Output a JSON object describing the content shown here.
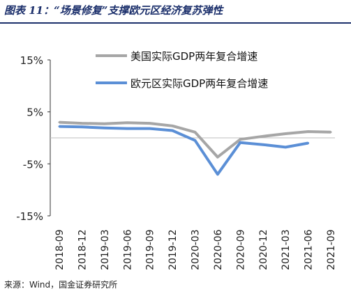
{
  "figure": {
    "title": "图表 11：“场景修复”支撑欧元区经济复苏弹性",
    "source": "来源：Wind，国金证券研究所"
  },
  "chart_data": {
    "type": "line",
    "categories": [
      "2018-09",
      "2018-12",
      "2019-03",
      "2019-06",
      "2019-09",
      "2019-12",
      "2020-03",
      "2020-06",
      "2020-09",
      "2020-12",
      "2021-03",
      "2021-06",
      "2021-09"
    ],
    "y_ticks": [
      "15%",
      "5%",
      "-5%",
      "-15%"
    ],
    "ylim": [
      -15,
      15
    ],
    "unit": "%",
    "legend_position": "top-right",
    "grid": false,
    "series": [
      {
        "name": "美国实际GDP两年复合增速",
        "color": "#a6a6a6",
        "values": [
          3.0,
          2.8,
          2.7,
          2.9,
          2.8,
          2.3,
          1.1,
          -3.7,
          -0.3,
          0.3,
          0.8,
          1.2,
          1.1
        ]
      },
      {
        "name": "欧元区实际GDP两年复合增速",
        "color": "#5b8fd6",
        "values": [
          2.2,
          2.1,
          1.9,
          1.8,
          1.8,
          1.4,
          -0.5,
          -7.0,
          -0.9,
          -1.3,
          -1.8,
          -1.0,
          null
        ]
      }
    ]
  }
}
